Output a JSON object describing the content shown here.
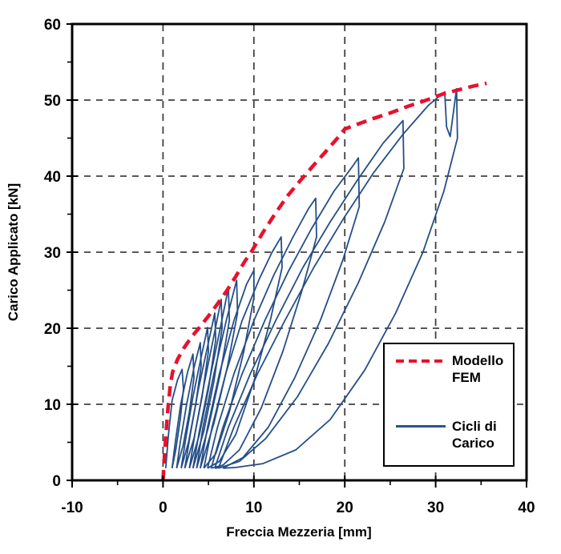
{
  "chart_data": {
    "type": "line",
    "title": "",
    "xlabel": "Freccia Mezzeria  [mm]",
    "ylabel": "Carico Applicato [kN]",
    "xlim": [
      -10,
      40
    ],
    "ylim": [
      0,
      60
    ],
    "xticks": [
      -10,
      0,
      10,
      20,
      30,
      40
    ],
    "yticks": [
      0,
      10,
      20,
      30,
      40,
      50,
      60
    ],
    "x_minor_ticks": [
      -5,
      5,
      15,
      25,
      35
    ],
    "y_minor_ticks": [
      5,
      15,
      25,
      35,
      45,
      55
    ],
    "grid": {
      "style": "dashed",
      "color": "#404040",
      "x_lines": [
        0,
        10,
        20,
        30
      ],
      "y_lines": [
        10,
        20,
        30,
        40,
        50
      ]
    },
    "legend": {
      "position": "lower-right",
      "entries": [
        {
          "label": "Modello FEM",
          "label_lines": [
            "Modello",
            "FEM"
          ],
          "style": "dashed",
          "color": "#e8112d"
        },
        {
          "label": "Cicli di Carico",
          "label_lines": [
            "Cicli di",
            "Carico"
          ],
          "style": "solid",
          "color": "#2a5490"
        }
      ]
    },
    "series": [
      {
        "name": "Modello FEM",
        "style": "dashed",
        "color": "#e8112d",
        "width": 4.5,
        "dash": "13 8",
        "points": [
          [
            0,
            0
          ],
          [
            0.15,
            3
          ],
          [
            0.35,
            6.5
          ],
          [
            0.55,
            9.5
          ],
          [
            0.8,
            12.5
          ],
          [
            1.05,
            14.2
          ],
          [
            1.6,
            15.9
          ],
          [
            2.3,
            17.4
          ],
          [
            3.1,
            18.8
          ],
          [
            4.0,
            20.1
          ],
          [
            5.0,
            21.6
          ],
          [
            6.0,
            23.2
          ],
          [
            7.0,
            24.9
          ],
          [
            8.0,
            26.8
          ],
          [
            9.0,
            28.8
          ],
          [
            9.8,
            30.2
          ],
          [
            11.0,
            32.6
          ],
          [
            12.3,
            35.0
          ],
          [
            13.7,
            37.4
          ],
          [
            15.1,
            39.4
          ],
          [
            16.4,
            41.2
          ],
          [
            17.8,
            43.1
          ],
          [
            19.2,
            45.0
          ],
          [
            20.0,
            46.2
          ],
          [
            21.6,
            46.9
          ],
          [
            23.2,
            47.6
          ],
          [
            25.0,
            48.3
          ],
          [
            27.0,
            49.2
          ],
          [
            29.0,
            50.0
          ],
          [
            30.8,
            50.8
          ],
          [
            32.4,
            51.3
          ],
          [
            34.0,
            51.8
          ],
          [
            35.6,
            52.2
          ]
        ]
      },
      {
        "name": "Cicli di Carico",
        "style": "solid",
        "color": "#254e86",
        "width": 1.8,
        "cycles": [
          [
            [
              0.3,
              1.6
            ],
            [
              0.6,
              6
            ],
            [
              1.0,
              10.5
            ],
            [
              1.6,
              13.2
            ],
            [
              2.1,
              14.6
            ],
            [
              2.25,
              12
            ],
            [
              1.9,
              8
            ],
            [
              1.4,
              4
            ],
            [
              1.0,
              1.6
            ]
          ],
          [
            [
              1.0,
              1.6
            ],
            [
              1.35,
              5
            ],
            [
              1.95,
              10
            ],
            [
              2.7,
              14.2
            ],
            [
              3.3,
              16.6
            ],
            [
              3.4,
              13.5
            ],
            [
              2.9,
              9
            ],
            [
              2.2,
              4.5
            ],
            [
              1.5,
              1.6
            ]
          ],
          [
            [
              1.5,
              1.6
            ],
            [
              1.9,
              5
            ],
            [
              2.6,
              10
            ],
            [
              3.4,
              14.8
            ],
            [
              4.1,
              18.1
            ],
            [
              4.2,
              15
            ],
            [
              3.6,
              10
            ],
            [
              2.8,
              5
            ],
            [
              2.0,
              1.6
            ]
          ],
          [
            [
              2.0,
              1.6
            ],
            [
              2.5,
              5.5
            ],
            [
              3.3,
              11
            ],
            [
              4.2,
              16.2
            ],
            [
              4.9,
              20.1
            ],
            [
              5.0,
              17
            ],
            [
              4.3,
              11
            ],
            [
              3.4,
              5.5
            ],
            [
              2.4,
              1.6
            ]
          ],
          [
            [
              2.4,
              1.6
            ],
            [
              3.0,
              6
            ],
            [
              3.9,
              12
            ],
            [
              4.9,
              17.6
            ],
            [
              5.7,
              22.0
            ],
            [
              5.8,
              18.5
            ],
            [
              5.0,
              12
            ],
            [
              4.0,
              6
            ],
            [
              2.9,
              1.6
            ]
          ],
          [
            [
              2.9,
              1.6
            ],
            [
              3.5,
              6
            ],
            [
              4.5,
              12.5
            ],
            [
              5.6,
              19
            ],
            [
              6.4,
              23.8
            ],
            [
              6.5,
              20
            ],
            [
              5.6,
              13
            ],
            [
              4.5,
              6.5
            ],
            [
              3.3,
              1.6
            ]
          ],
          [
            [
              3.3,
              1.6
            ],
            [
              4.0,
              6.5
            ],
            [
              5.1,
              13
            ],
            [
              6.3,
              20
            ],
            [
              7.2,
              25.3
            ],
            [
              7.3,
              21
            ],
            [
              6.3,
              14
            ],
            [
              5.0,
              7
            ],
            [
              3.7,
              1.6
            ]
          ],
          [
            [
              3.7,
              1.6
            ],
            [
              4.4,
              7
            ],
            [
              5.6,
              14
            ],
            [
              7.0,
              21.2
            ],
            [
              8.1,
              26.3
            ],
            [
              8.2,
              22
            ],
            [
              7.1,
              15
            ],
            [
              5.6,
              7.5
            ],
            [
              4.1,
              1.6
            ]
          ],
          [
            [
              4.1,
              1.6
            ],
            [
              4.9,
              7
            ],
            [
              6.2,
              14
            ],
            [
              7.8,
              21
            ],
            [
              9.2,
              25.8
            ],
            [
              10.0,
              27.6
            ],
            [
              10.0,
              24
            ],
            [
              8.9,
              17
            ],
            [
              7.3,
              9
            ],
            [
              5.8,
              3.5
            ],
            [
              4.5,
              1.6
            ]
          ],
          [
            [
              4.5,
              1.6
            ],
            [
              5.4,
              7
            ],
            [
              6.9,
              14
            ],
            [
              8.7,
              21
            ],
            [
              10.6,
              26.5
            ],
            [
              12.0,
              30
            ],
            [
              13.0,
              32.0
            ],
            [
              13.1,
              28
            ],
            [
              11.8,
              21
            ],
            [
              10.0,
              13
            ],
            [
              8.0,
              6
            ],
            [
              6.2,
              2.5
            ],
            [
              4.9,
              1.6
            ]
          ],
          [
            [
              4.9,
              1.6
            ],
            [
              6.0,
              7
            ],
            [
              7.8,
              14
            ],
            [
              10.0,
              21
            ],
            [
              12.2,
              27
            ],
            [
              14.3,
              32
            ],
            [
              16.0,
              35.7
            ],
            [
              16.8,
              37.1
            ],
            [
              16.9,
              32
            ],
            [
              15.3,
              25
            ],
            [
              13.2,
              17
            ],
            [
              10.8,
              9.5
            ],
            [
              8.4,
              4
            ],
            [
              6.6,
              2
            ],
            [
              5.3,
              1.6
            ]
          ],
          [
            [
              5.3,
              1.6
            ],
            [
              6.6,
              7
            ],
            [
              8.7,
              14
            ],
            [
              11.2,
              21
            ],
            [
              13.8,
              27.5
            ],
            [
              16.3,
              33
            ],
            [
              18.8,
              38
            ],
            [
              20.8,
              41.2
            ],
            [
              21.5,
              42.4
            ],
            [
              21.6,
              36
            ],
            [
              19.8,
              29
            ],
            [
              17.3,
              21
            ],
            [
              14.5,
              13.5
            ],
            [
              11.6,
              7
            ],
            [
              8.8,
              3
            ],
            [
              6.9,
              1.8
            ],
            [
              5.7,
              1.6
            ]
          ],
          [
            [
              5.7,
              1.6
            ],
            [
              7.2,
              7
            ],
            [
              9.6,
              14
            ],
            [
              12.4,
              21
            ],
            [
              15.4,
              28
            ],
            [
              18.4,
              34
            ],
            [
              21.4,
              39.5
            ],
            [
              24.2,
              44.3
            ],
            [
              26.4,
              47.3
            ],
            [
              26.5,
              41
            ],
            [
              24.4,
              34
            ],
            [
              21.5,
              26
            ],
            [
              18.2,
              18
            ],
            [
              14.8,
              11
            ],
            [
              11.3,
              5.5
            ],
            [
              8.4,
              2.5
            ],
            [
              6.1,
              1.6
            ]
          ],
          [
            [
              6.1,
              1.6
            ],
            [
              7.8,
              7
            ],
            [
              10.4,
              14
            ],
            [
              13.4,
              21
            ],
            [
              16.6,
              28
            ],
            [
              19.9,
              34.5
            ],
            [
              23.2,
              40.5
            ],
            [
              26.4,
              45.5
            ],
            [
              29.2,
              49.3
            ],
            [
              31.0,
              51.1
            ],
            [
              31.2,
              46.5
            ],
            [
              31.6,
              45.2
            ],
            [
              32.3,
              51.5
            ],
            [
              32.4,
              45
            ],
            [
              30.9,
              38
            ],
            [
              28.6,
              30
            ],
            [
              25.6,
              22
            ],
            [
              22.2,
              14.5
            ],
            [
              18.4,
              8
            ],
            [
              14.6,
              4
            ],
            [
              11.0,
              2.2
            ],
            [
              8.0,
              1.7
            ],
            [
              6.6,
              1.6
            ]
          ]
        ]
      }
    ],
    "frame": {
      "color": "#000000",
      "width": 3
    }
  }
}
